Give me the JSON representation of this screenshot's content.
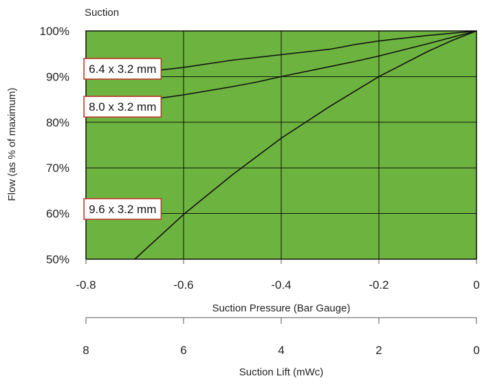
{
  "chart_data": {
    "type": "line",
    "title": "Suction",
    "xlabel": "Suction Pressure (Bar Gauge)",
    "ylabel": "Flow (as % of maximum)",
    "xlim": [
      -0.8,
      0
    ],
    "ylim": [
      50,
      100
    ],
    "x_ticks": [
      -0.8,
      -0.6,
      -0.4,
      -0.2,
      0
    ],
    "x_tick_labels": [
      "-0.8",
      "-0.6",
      "-0.4",
      "-0.2",
      "0"
    ],
    "y_ticks": [
      50,
      60,
      70,
      80,
      90,
      100
    ],
    "y_tick_labels": [
      "50%",
      "60%",
      "70%",
      "80%",
      "90%",
      "100%"
    ],
    "secondary_xlabel": "Suction Lift (mWc)",
    "secondary_x_ticks": [
      -0.8,
      -0.6,
      -0.4,
      -0.2,
      0
    ],
    "secondary_x_tick_labels": [
      "8",
      "6",
      "4",
      "2",
      "0"
    ],
    "grid": true,
    "plot_background": "#6db33f",
    "line_color": "#111111",
    "label_border_color": "#c0392b",
    "series": [
      {
        "name": "6.4 x 3.2 mm",
        "x": [
          -0.8,
          -0.7,
          -0.6,
          -0.5,
          -0.4,
          -0.3,
          -0.25,
          -0.2,
          -0.1,
          0
        ],
        "y": [
          89.5,
          90.8,
          92.0,
          93.6,
          94.8,
          96.0,
          97.0,
          97.8,
          99.0,
          100
        ]
      },
      {
        "name": "8.0 x 3.2 mm",
        "x": [
          -0.8,
          -0.7,
          -0.6,
          -0.5,
          -0.45,
          -0.4,
          -0.3,
          -0.25,
          -0.2,
          -0.1,
          0
        ],
        "y": [
          82.3,
          84.5,
          86.0,
          87.8,
          88.8,
          90.0,
          92.2,
          93.3,
          94.5,
          97.2,
          100
        ]
      },
      {
        "name": "9.6 x 3.2 mm",
        "x": [
          -0.7,
          -0.6,
          -0.5,
          -0.4,
          -0.3,
          -0.2,
          -0.1,
          -0.05,
          0
        ],
        "y": [
          50,
          59.8,
          68.5,
          76.5,
          83.5,
          90.0,
          95.5,
          97.9,
          100
        ]
      }
    ],
    "series_labels": [
      {
        "series": 0,
        "text": "6.4 x 3.2 mm",
        "at_x": -0.725,
        "at_y": 91.7
      },
      {
        "series": 1,
        "text": "8.0 x 3.2 mm",
        "at_x": -0.725,
        "at_y": 83.4
      },
      {
        "series": 2,
        "text": "9.6 x 3.2 mm",
        "at_x": -0.725,
        "at_y": 61.0
      }
    ]
  }
}
